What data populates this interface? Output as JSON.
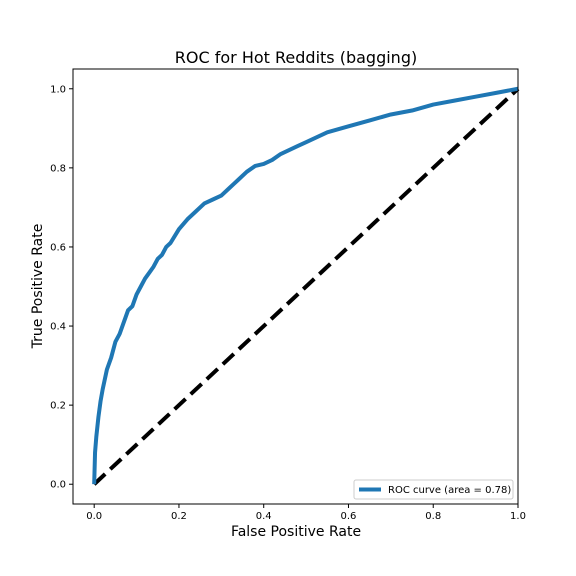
{
  "chart_data": {
    "type": "line",
    "title": "ROC for Hot Reddits (bagging)",
    "xlabel": "False Positive Rate",
    "ylabel": "True Positive Rate",
    "xlim": [
      -0.05,
      1.0
    ],
    "ylim": [
      -0.05,
      1.05
    ],
    "xticks": [
      0.0,
      0.2,
      0.4,
      0.6,
      0.8,
      1.0
    ],
    "xtick_labels": [
      "0.0",
      "0.2",
      "0.4",
      "0.6",
      "0.8",
      "1.0"
    ],
    "yticks": [
      0.0,
      0.2,
      0.4,
      0.6,
      0.8,
      1.0
    ],
    "ytick_labels": [
      "0.0",
      "0.2",
      "0.4",
      "0.6",
      "0.8",
      "1.0"
    ],
    "grid": false,
    "legend_position": "lower-right",
    "series": [
      {
        "name": "ROC curve (area = 0.78)",
        "color": "#1f77b4",
        "style": "solid",
        "x": [
          0.0,
          0.002,
          0.005,
          0.01,
          0.015,
          0.02,
          0.03,
          0.04,
          0.05,
          0.06,
          0.07,
          0.08,
          0.09,
          0.1,
          0.11,
          0.12,
          0.13,
          0.14,
          0.15,
          0.16,
          0.17,
          0.18,
          0.2,
          0.22,
          0.24,
          0.26,
          0.28,
          0.3,
          0.32,
          0.33,
          0.34,
          0.36,
          0.38,
          0.4,
          0.42,
          0.44,
          0.46,
          0.48,
          0.5,
          0.55,
          0.6,
          0.65,
          0.7,
          0.75,
          0.8,
          0.85,
          0.9,
          0.95,
          1.0
        ],
        "y": [
          0.0,
          0.08,
          0.12,
          0.17,
          0.21,
          0.24,
          0.29,
          0.32,
          0.36,
          0.38,
          0.41,
          0.44,
          0.45,
          0.48,
          0.5,
          0.52,
          0.535,
          0.55,
          0.57,
          0.58,
          0.6,
          0.61,
          0.645,
          0.67,
          0.69,
          0.71,
          0.72,
          0.73,
          0.75,
          0.76,
          0.77,
          0.79,
          0.805,
          0.81,
          0.82,
          0.835,
          0.845,
          0.855,
          0.865,
          0.89,
          0.905,
          0.92,
          0.935,
          0.945,
          0.96,
          0.97,
          0.98,
          0.99,
          1.0
        ]
      },
      {
        "name": "",
        "color": "#000000",
        "style": "dashed",
        "x": [
          0.0,
          1.0
        ],
        "y": [
          0.0,
          1.0
        ]
      }
    ]
  }
}
